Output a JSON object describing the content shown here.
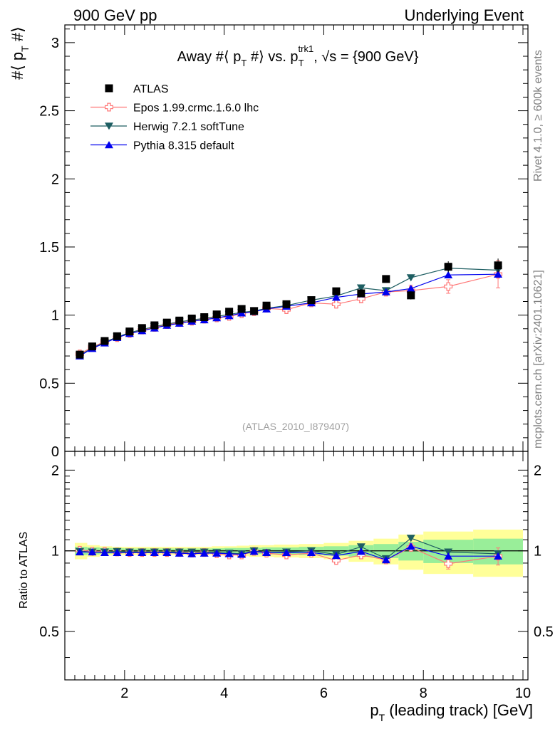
{
  "header": {
    "left": "900 GeV pp",
    "right": "Underlying Event",
    "side_top": "Rivet 4.1.0, ≥ 600k events",
    "side_bottom": "mcplots.cern.ch [arXiv:2401.10621]"
  },
  "chart_data": {
    "type": "scatter",
    "title_parts": {
      "a": "Away #⟨ p",
      "a_sub": "T",
      "b": " #⟩ vs. p",
      "b_sub": "T",
      "b_sup": "trk1",
      "c": ", √s",
      "d": " = {900 GeV}"
    },
    "ylabel_main": {
      "a": "#⟨ p",
      "sub": "T",
      "b": " #⟩"
    },
    "ylabel_ratio": "Ratio to ATLAS",
    "xlabel": {
      "a": "p",
      "sub": "T",
      "b": " (leading track) [GeV]"
    },
    "watermark": "(ATLAS_2010_I879407)",
    "xlim": [
      0.8,
      10.1
    ],
    "ylim": [
      0,
      3.13
    ],
    "ratio_ylim": [
      0.33,
      2.35
    ],
    "x_ticks": [
      2,
      4,
      6,
      8,
      10
    ],
    "y_ticks": [
      0,
      0.5,
      1,
      1.5,
      2,
      2.5,
      3
    ],
    "y_tick_labels": [
      "0",
      "0.5",
      "1",
      "1.5",
      "2",
      "2.5",
      "3"
    ],
    "ratio_ticks": [
      0.5,
      1,
      2
    ],
    "ratio_tick_labels": [
      "0.5",
      "1",
      "2"
    ],
    "x": [
      1.1,
      1.35,
      1.6,
      1.85,
      2.1,
      2.35,
      2.6,
      2.85,
      3.1,
      3.35,
      3.6,
      3.85,
      4.1,
      4.35,
      4.6,
      4.85,
      5.25,
      5.75,
      6.25,
      6.75,
      7.25,
      7.75,
      8.5,
      9.5
    ],
    "x_bins": [
      [
        1.0,
        1.25
      ],
      [
        1.25,
        1.5
      ],
      [
        1.5,
        1.75
      ],
      [
        1.75,
        2.0
      ],
      [
        2.0,
        2.25
      ],
      [
        2.25,
        2.5
      ],
      [
        2.5,
        2.75
      ],
      [
        2.75,
        3.0
      ],
      [
        3.0,
        3.25
      ],
      [
        3.25,
        3.5
      ],
      [
        3.5,
        3.75
      ],
      [
        3.75,
        4.0
      ],
      [
        4.0,
        4.25
      ],
      [
        4.25,
        4.5
      ],
      [
        4.5,
        4.75
      ],
      [
        4.75,
        5.0
      ],
      [
        5.0,
        5.5
      ],
      [
        5.5,
        6.0
      ],
      [
        6.0,
        6.5
      ],
      [
        6.5,
        7.0
      ],
      [
        7.0,
        7.5
      ],
      [
        7.5,
        8.0
      ],
      [
        8.0,
        9.0
      ],
      [
        9.0,
        10.0
      ]
    ],
    "band_inner": [
      0.035,
      0.03,
      0.025,
      0.022,
      0.02,
      0.02,
      0.02,
      0.02,
      0.02,
      0.02,
      0.02,
      0.022,
      0.025,
      0.025,
      0.027,
      0.03,
      0.03,
      0.035,
      0.04,
      0.05,
      0.06,
      0.08,
      0.1,
      0.11
    ],
    "band_outer": [
      0.07,
      0.05,
      0.04,
      0.035,
      0.035,
      0.035,
      0.035,
      0.035,
      0.035,
      0.035,
      0.035,
      0.04,
      0.04,
      0.045,
      0.05,
      0.05,
      0.055,
      0.06,
      0.07,
      0.09,
      0.11,
      0.15,
      0.18,
      0.2
    ],
    "band_colors": {
      "inner": "#99ee99",
      "outer": "#ffff99"
    },
    "series": [
      {
        "name": "ATLAS",
        "marker": "square",
        "color": "#000000",
        "values": [
          0.71,
          0.77,
          0.81,
          0.845,
          0.88,
          0.905,
          0.925,
          0.945,
          0.96,
          0.975,
          0.985,
          1.005,
          1.025,
          1.045,
          1.03,
          1.07,
          1.08,
          1.11,
          1.175,
          1.16,
          1.265,
          1.145,
          1.355,
          1.365
        ],
        "errors": [
          0.01,
          0.01,
          0.01,
          0.01,
          0.01,
          0.01,
          0.01,
          0.01,
          0.01,
          0.01,
          0.01,
          0.01,
          0.01,
          0.012,
          0.012,
          0.013,
          0.015,
          0.015,
          0.02,
          0.02,
          0.02,
          0.03,
          0.04,
          0.05
        ],
        "ratio": null
      },
      {
        "name": "Epos 1.99.crmc.1.6.0 lhc",
        "marker": "open-cross",
        "color": "#ff7777",
        "values": [
          0.715,
          0.765,
          0.805,
          0.835,
          0.865,
          0.89,
          0.91,
          0.93,
          0.945,
          0.955,
          0.97,
          0.98,
          0.99,
          1.01,
          1.025,
          1.05,
          1.04,
          1.09,
          1.08,
          1.12,
          1.17,
          1.18,
          1.21,
          1.3
        ],
        "errors": [
          0.01,
          0.01,
          0.01,
          0.01,
          0.01,
          0.01,
          0.01,
          0.01,
          0.01,
          0.01,
          0.01,
          0.01,
          0.01,
          0.012,
          0.012,
          0.013,
          0.015,
          0.015,
          0.02,
          0.03,
          0.03,
          0.04,
          0.05,
          0.1
        ],
        "ratio": [
          1.005,
          0.995,
          0.995,
          0.99,
          0.985,
          0.985,
          0.985,
          0.985,
          0.985,
          0.98,
          0.985,
          0.975,
          0.965,
          0.965,
          0.995,
          0.98,
          0.965,
          0.98,
          0.92,
          0.965,
          0.925,
          1.03,
          0.895,
          0.955
        ],
        "ratio_err": [
          0.012,
          0.012,
          0.012,
          0.012,
          0.012,
          0.012,
          0.012,
          0.012,
          0.012,
          0.012,
          0.012,
          0.012,
          0.012,
          0.012,
          0.012,
          0.012,
          0.012,
          0.015,
          0.02,
          0.03,
          0.03,
          0.03,
          0.04,
          0.07
        ]
      },
      {
        "name": "Herwig 7.2.1 softTune",
        "marker": "triangle-down",
        "color": "#1e5e62",
        "values": [
          0.705,
          0.76,
          0.8,
          0.84,
          0.87,
          0.895,
          0.915,
          0.935,
          0.95,
          0.965,
          0.975,
          0.99,
          1.005,
          1.02,
          1.03,
          1.05,
          1.07,
          1.11,
          1.14,
          1.2,
          1.18,
          1.275,
          1.345,
          1.33
        ],
        "errors": [
          0.005,
          0.005,
          0.005,
          0.005,
          0.005,
          0.005,
          0.005,
          0.005,
          0.005,
          0.005,
          0.005,
          0.005,
          0.005,
          0.005,
          0.005,
          0.005,
          0.005,
          0.006,
          0.008,
          0.01,
          0.012,
          0.02,
          0.03,
          0.03
        ],
        "ratio": [
          0.995,
          0.99,
          0.99,
          0.995,
          0.99,
          0.99,
          0.99,
          0.99,
          0.99,
          0.99,
          0.99,
          0.985,
          0.98,
          0.975,
          1.0,
          0.985,
          0.99,
          1.0,
          0.97,
          1.035,
          0.935,
          1.115,
          0.99,
          0.975
        ],
        "ratio_err": [
          0.006,
          0.006,
          0.006,
          0.006,
          0.006,
          0.006,
          0.006,
          0.006,
          0.006,
          0.006,
          0.006,
          0.006,
          0.006,
          0.006,
          0.006,
          0.006,
          0.006,
          0.006,
          0.008,
          0.01,
          0.012,
          0.02,
          0.025,
          0.025
        ]
      },
      {
        "name": "Pythia 8.315 default",
        "marker": "triangle-up",
        "color": "#0000ee",
        "values": [
          0.7,
          0.755,
          0.795,
          0.835,
          0.865,
          0.885,
          0.905,
          0.925,
          0.94,
          0.955,
          0.965,
          0.98,
          0.995,
          1.015,
          1.025,
          1.045,
          1.065,
          1.09,
          1.13,
          1.155,
          1.17,
          1.195,
          1.295,
          1.3
        ],
        "errors": [
          0.005,
          0.005,
          0.005,
          0.005,
          0.005,
          0.005,
          0.005,
          0.005,
          0.005,
          0.005,
          0.005,
          0.005,
          0.005,
          0.005,
          0.005,
          0.005,
          0.005,
          0.006,
          0.008,
          0.01,
          0.012,
          0.015,
          0.02,
          0.02
        ],
        "ratio": [
          0.99,
          0.99,
          0.985,
          0.985,
          0.985,
          0.985,
          0.985,
          0.985,
          0.98,
          0.975,
          0.98,
          0.98,
          0.975,
          0.97,
          0.995,
          0.985,
          0.985,
          0.985,
          0.96,
          0.995,
          0.925,
          1.04,
          0.955,
          0.955
        ],
        "ratio_err": [
          0.006,
          0.006,
          0.006,
          0.006,
          0.006,
          0.006,
          0.006,
          0.006,
          0.006,
          0.006,
          0.006,
          0.006,
          0.006,
          0.006,
          0.006,
          0.006,
          0.006,
          0.006,
          0.008,
          0.01,
          0.012,
          0.015,
          0.02,
          0.02
        ]
      }
    ]
  }
}
